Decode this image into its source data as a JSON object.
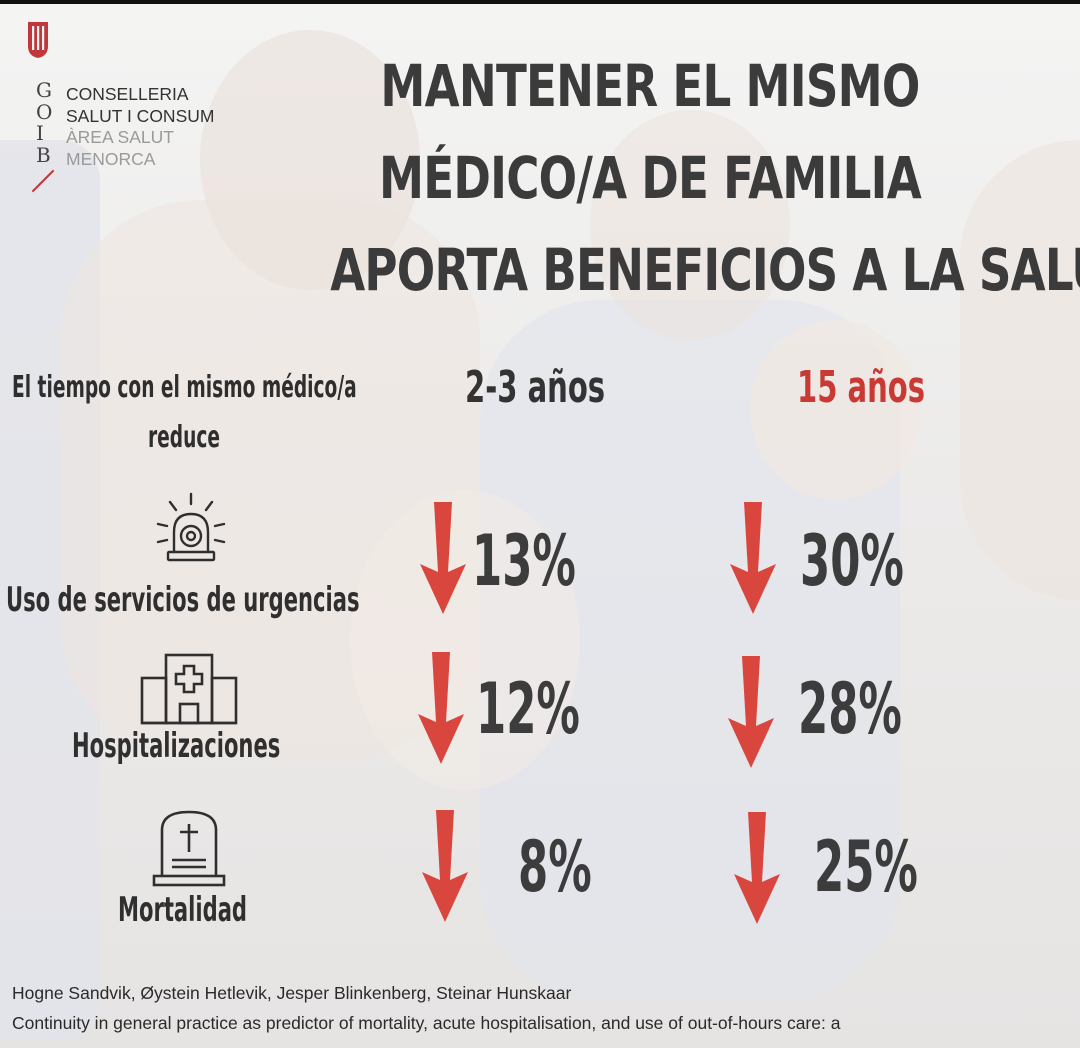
{
  "header": {
    "gob_letters": [
      "G",
      "O",
      "I",
      "B"
    ],
    "department": [
      "CONSELLERIA",
      "SALUT I CONSUM",
      "ÀREA SALUT",
      "MENORCA"
    ],
    "title_lines": [
      "MANTENER EL MISMO",
      "MÉDICO/A DE FAMILIA",
      "APORTA BENEFICIOS A LA SALUD"
    ]
  },
  "intro": {
    "line1": "El tiempo con el mismo médico/a",
    "line2": "reduce"
  },
  "columns": [
    "2-3 años",
    "15 años"
  ],
  "rows": [
    {
      "label": "Uso de servicios de urgencias",
      "icon": "ambulance-siren-icon",
      "values": [
        "13%",
        "30%"
      ]
    },
    {
      "label": "Hospitalizaciones",
      "icon": "hospital-icon",
      "values": [
        "12%",
        "28%"
      ]
    },
    {
      "label": "Mortalidad",
      "icon": "tombstone-icon",
      "values": [
        "8%",
        "25%"
      ]
    }
  ],
  "colors": {
    "accent_red": "#d9463e",
    "title_gray": "#3b3b3b"
  },
  "references": {
    "authors": "Hogne Sandvik, Øystein Hetlevik, Jesper Blinkenberg, Steinar Hunskaar",
    "title": "Continuity in general practice as predictor of mortality, acute hospitalisation, and use of out-of-hours care: a"
  }
}
